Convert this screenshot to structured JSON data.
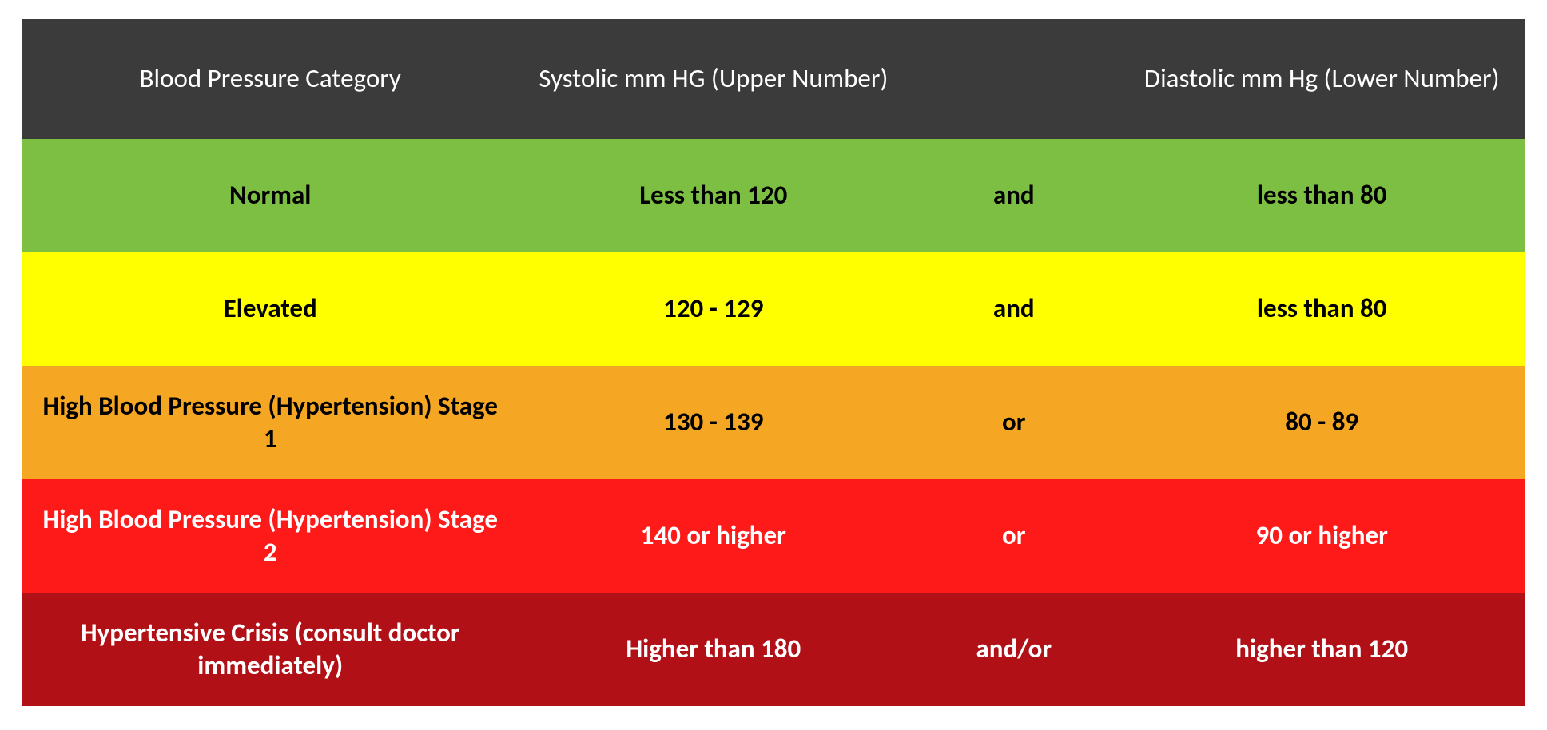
{
  "table": {
    "type": "table",
    "background_color": "#ffffff",
    "header": {
      "bg": "#3b3b3b",
      "text_color": "#ffffff",
      "fontsize": 33,
      "font_weight": 400,
      "columns": [
        "Blood Pressure Category",
        "Systolic mm HG (Upper Number)",
        "",
        "Diastolic mm Hg (Lower Number)"
      ]
    },
    "body_fontsize": 33,
    "body_font_weight": 700,
    "rows": [
      {
        "category": "Normal",
        "systolic": "Less than 120",
        "operator": "and",
        "diastolic": "less than 80",
        "bg": "#7cbf42",
        "text_color": "#000000"
      },
      {
        "category": "Elevated",
        "systolic": "120 - 129",
        "operator": "and",
        "diastolic": "less than 80",
        "bg": "#ffff00",
        "text_color": "#000000"
      },
      {
        "category": "High Blood Pressure (Hypertension) Stage 1",
        "systolic": "130 - 139",
        "operator": "or",
        "diastolic": "80 - 89",
        "bg": "#f5a623",
        "text_color": "#000000"
      },
      {
        "category": "High Blood Pressure (Hypertension) Stage 2",
        "systolic": "140 or higher",
        "operator": "or",
        "diastolic": "90 or higher",
        "bg": "#ff1a1a",
        "text_color": "#ffffff"
      },
      {
        "category": "Hypertensive Crisis (consult doctor immediately)",
        "systolic": "Higher than 180",
        "operator": "and/or",
        "diastolic": "higher than 120",
        "bg": "#b11116",
        "text_color": "#ffffff"
      }
    ]
  }
}
